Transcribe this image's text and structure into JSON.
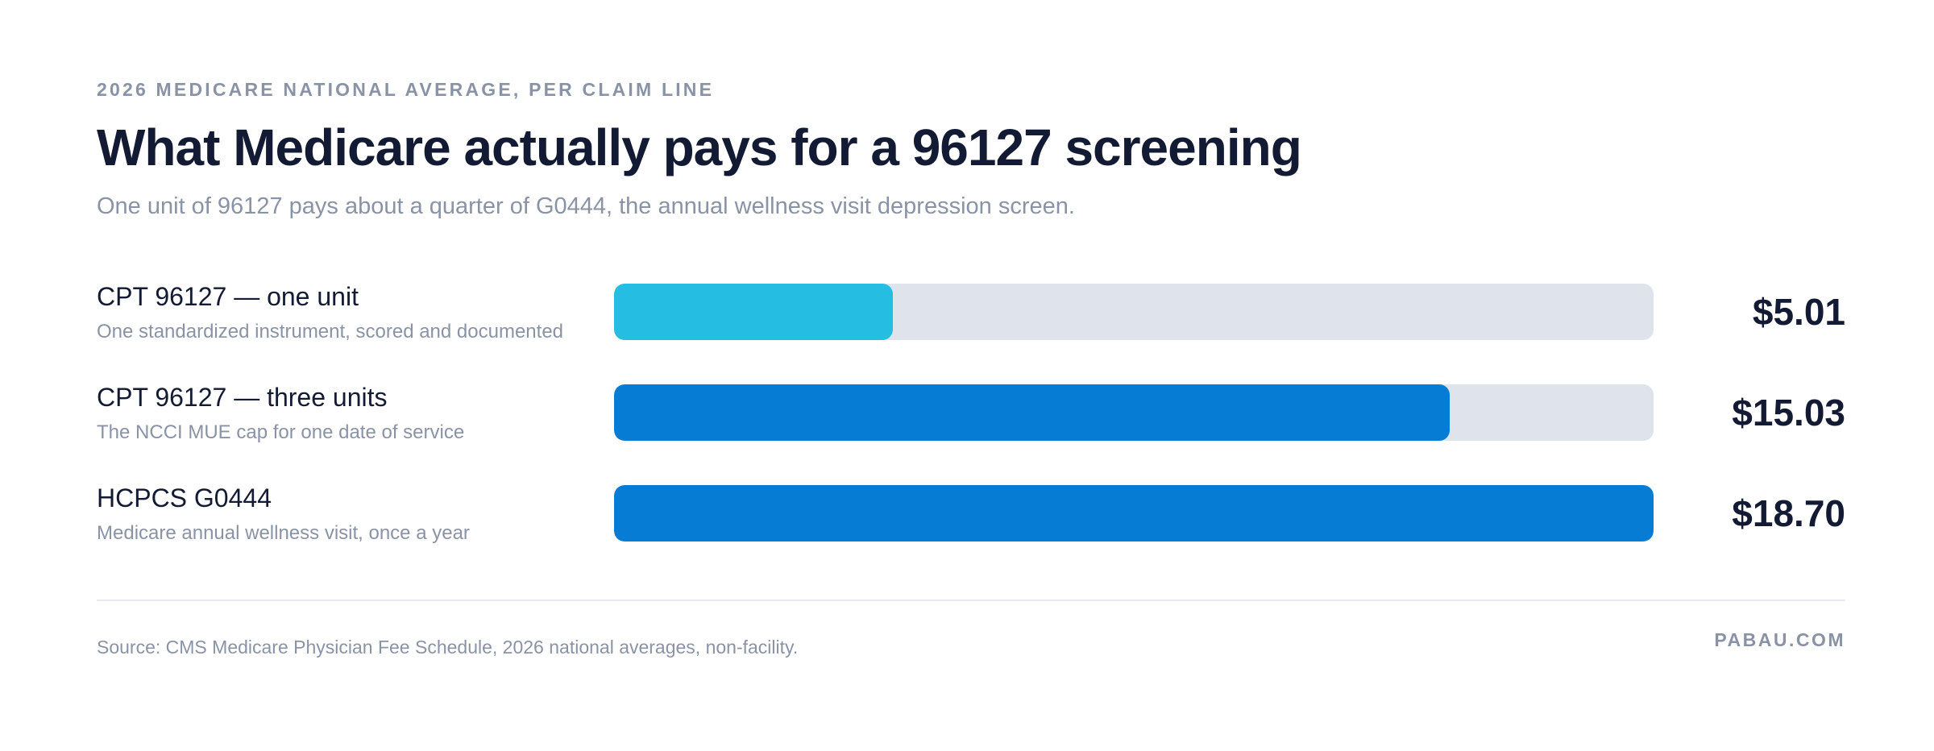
{
  "header": {
    "eyebrow": "2026 MEDICARE NATIONAL AVERAGE, PER CLAIM LINE",
    "title": "What Medicare actually pays for a 96127 screening",
    "subtitle": "One unit of 96127 pays about a quarter of G0444, the annual wellness visit depression screen."
  },
  "chart_data": {
    "type": "bar",
    "orientation": "horizontal",
    "title": "What Medicare actually pays for a 96127 screening",
    "subtitle": "One unit of 96127 pays about a quarter of G0444, the annual wellness visit depression screen.",
    "xlim": [
      0,
      18.7
    ],
    "grid": false,
    "categories": [
      "CPT 96127 — one unit",
      "CPT 96127 — three units",
      "HCPCS G0444"
    ],
    "descriptions": [
      "One standardized instrument, scored and documented",
      "The NCCI MUE cap for one date of service",
      "Medicare annual wellness visit, once a year"
    ],
    "values": [
      5.01,
      15.03,
      18.7
    ],
    "value_labels": [
      "$5.01",
      "$15.03",
      "$18.70"
    ],
    "bar_colors": [
      "#26bde2",
      "#077cd4",
      "#077cd4"
    ],
    "track_color": "#dfe3ec"
  },
  "footer": {
    "source": "Source: CMS Medicare Physician Fee Schedule, 2026 national averages, non-facility.",
    "brand": "PABAU.COM"
  }
}
